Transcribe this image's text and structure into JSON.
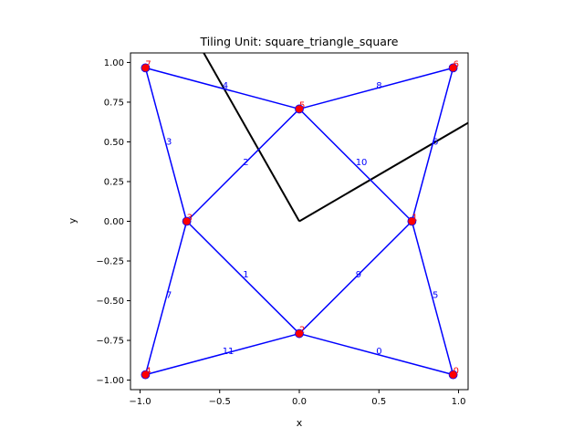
{
  "chart_data": {
    "type": "line",
    "title": "Tiling Unit: square_triangle_square",
    "xlabel": "x",
    "ylabel": "y",
    "xlim": [
      -1.06,
      1.06
    ],
    "ylim": [
      -1.06,
      1.06
    ],
    "x_ticks": [
      -1.0,
      -0.5,
      0.0,
      0.5,
      1.0
    ],
    "y_ticks": [
      -1.0,
      -0.75,
      -0.5,
      -0.25,
      0.0,
      0.25,
      0.5,
      0.75,
      1.0
    ],
    "x_tick_labels": [
      "−1.0",
      "−0.5",
      "0.0",
      "0.5",
      "1.0"
    ],
    "y_tick_labels": [
      "−1.00",
      "−0.75",
      "−0.50",
      "−0.25",
      "0.00",
      "0.25",
      "0.50",
      "0.75",
      "1.00"
    ],
    "grid": false,
    "colors": {
      "edge": "#0000ff",
      "vertex": "#ff0000",
      "vertex_label": "#ff0000",
      "edge_label": "#0000ff",
      "guide_line": "#000000"
    },
    "vertices": [
      {
        "id": "0",
        "x": 0.966,
        "y": -0.966
      },
      {
        "id": "1",
        "x": 0.707,
        "y": 0.0
      },
      {
        "id": "2",
        "x": 0.0,
        "y": -0.707
      },
      {
        "id": "3",
        "x": -0.707,
        "y": 0.0
      },
      {
        "id": "4",
        "x": -0.966,
        "y": -0.966
      },
      {
        "id": "5",
        "x": 0.0,
        "y": 0.707
      },
      {
        "id": "6",
        "x": 0.966,
        "y": 0.966
      },
      {
        "id": "7",
        "x": -0.966,
        "y": 0.966
      }
    ],
    "edges": [
      {
        "label": "0",
        "from": 2,
        "to": 0
      },
      {
        "label": "1",
        "from": 3,
        "to": 2
      },
      {
        "label": "2",
        "from": 3,
        "to": 5
      },
      {
        "label": "3",
        "from": 7,
        "to": 3
      },
      {
        "label": "4",
        "from": 7,
        "to": 5
      },
      {
        "label": "5",
        "from": 1,
        "to": 0
      },
      {
        "label": "6",
        "from": 1,
        "to": 6
      },
      {
        "label": "7",
        "from": 3,
        "to": 4
      },
      {
        "label": "8",
        "from": 5,
        "to": 6
      },
      {
        "label": "9",
        "from": 2,
        "to": 1
      },
      {
        "label": "10",
        "from": 5,
        "to": 1
      },
      {
        "label": "11",
        "from": 4,
        "to": 2
      }
    ],
    "guide_lines": [
      {
        "points": [
          [
            0.0,
            0.0
          ],
          [
            -0.6,
            1.06
          ]
        ]
      },
      {
        "points": [
          [
            0.0,
            0.0
          ],
          [
            1.06,
            0.62
          ]
        ]
      }
    ]
  }
}
